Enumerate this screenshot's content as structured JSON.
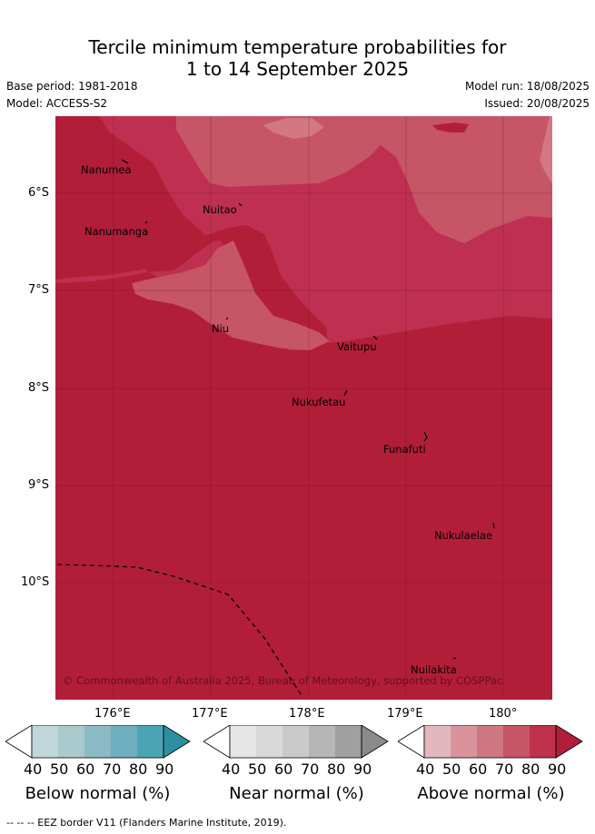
{
  "header": {
    "title_line1": "Tercile minimum temperature probabilities for",
    "title_line2": "1 to 14 September 2025",
    "base_period": "Base period: 1981-2018",
    "model": "Model: ACCESS-S2",
    "model_run": "Model run: 18/08/2025",
    "issued": "Issued: 20/08/2025"
  },
  "map": {
    "lat_labels": [
      "6°S",
      "7°S",
      "8°S",
      "9°S",
      "10°S"
    ],
    "lon_labels": [
      "176°E",
      "177°E",
      "178°E",
      "179°E",
      "180°"
    ],
    "places": [
      "Nanumea",
      "Nuitao",
      "Nanumanga",
      "Niu",
      "Vaitupu",
      "Nukufetau",
      "Funafuti",
      "Nukulaelae",
      "Nuilakita"
    ],
    "copyright": "© Commonwealth of Australia 2025, Bureau of Meteorology, supported by COSPPac",
    "colors": {
      "above_90": "#b21e38",
      "above_80": "#bf3050",
      "above_70": "#c65565",
      "above_60": "#d27880"
    }
  },
  "legend": {
    "ticks": [
      "40",
      "50",
      "60",
      "70",
      "80",
      "90"
    ],
    "bars": [
      {
        "title": "Below normal (%)",
        "colors": [
          "#c0d6db",
          "#a9c9cd",
          "#8bbac4",
          "#6eaebd",
          "#4ba4b3",
          "#2b8ea2"
        ]
      },
      {
        "title": "Near normal (%)",
        "colors": [
          "#e6e6e6",
          "#d9d9d9",
          "#cacaca",
          "#b6b6b6",
          "#a0a0a0",
          "#8a8a8a"
        ]
      },
      {
        "title": "Above normal (%)",
        "colors": [
          "#e2b7bd",
          "#d8939b",
          "#cf7780",
          "#c65565",
          "#bf3149",
          "#b21e38"
        ]
      }
    ]
  },
  "footer": {
    "eez_note": "-- -- -- EEZ border V11 (Flanders Marine Institute, 2019)."
  }
}
